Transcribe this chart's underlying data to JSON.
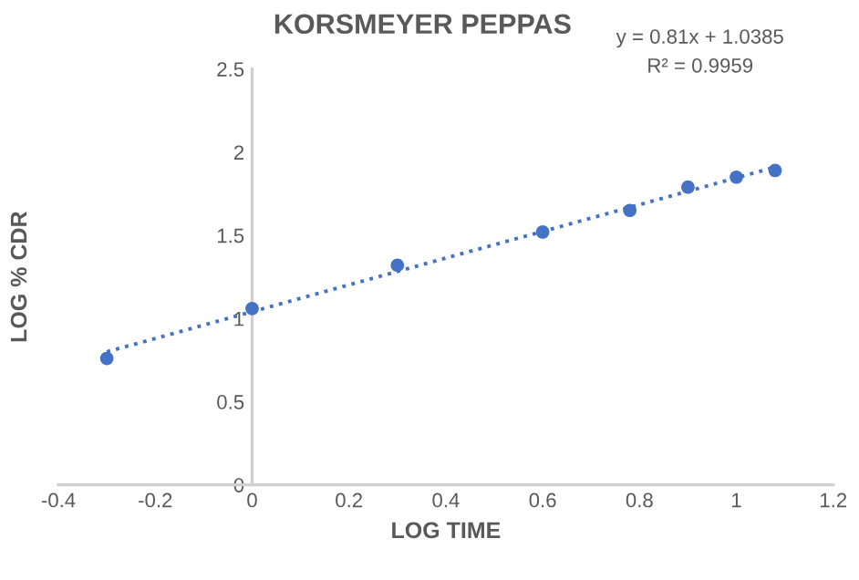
{
  "chart_data": {
    "type": "scatter",
    "title": "KORSMEYER PEPPAS",
    "xlabel": "LOG TIME",
    "ylabel": "LOG % CDR",
    "annotations": [
      "y = 0.81x + 1.0385",
      "R² = 0.9959"
    ],
    "series": [
      {
        "color": "#4472c4",
        "marker": "circle",
        "x": [
          -0.3,
          0,
          0.3,
          0.6,
          0.78,
          0.9,
          1.0,
          1.08
        ],
        "values": [
          0.76,
          1.06,
          1.32,
          1.52,
          1.65,
          1.79,
          1.85,
          1.89
        ]
      },
      {
        "type": "line",
        "color": "#4472c4",
        "line_style": "dotted",
        "x": [
          -0.3,
          1.08
        ],
        "values": [
          0.8,
          1.91
        ]
      }
    ],
    "xlim": [
      -0.4,
      1.2
    ],
    "xticks": [
      -0.4,
      -0.2,
      0,
      0.2,
      0.4,
      0.6,
      0.8,
      1,
      1.2
    ],
    "ylim": [
      0,
      2.5
    ],
    "yticks": [
      0,
      0.5,
      1,
      1.5,
      2,
      2.5
    ],
    "grid": false
  }
}
